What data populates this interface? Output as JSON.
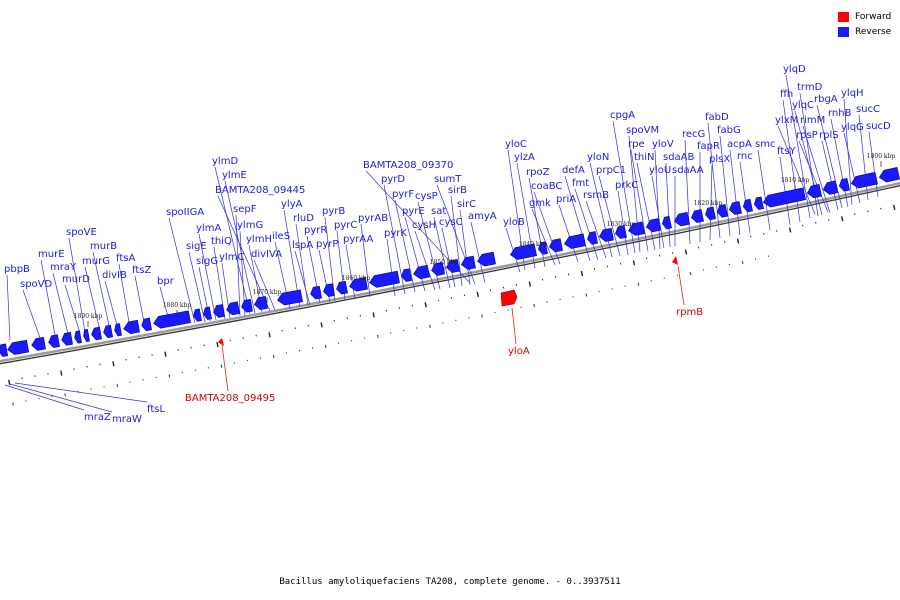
{
  "legend": {
    "forward": {
      "label": "Forward",
      "color": "#ff0000"
    },
    "reverse": {
      "label": "Reverse",
      "color": "#1a1aff"
    }
  },
  "caption": "Bacillus amyloliquefaciens TA208, complete genome. - 0..3937511",
  "scale_labels": [
    "1800 kbp",
    "1810 kbp",
    "1820 kbp",
    "1830 kbp",
    "1840 kbp",
    "1850 kbp",
    "1860 kbp",
    "1870 kbp",
    "1880 kbp",
    "1890 kbp"
  ],
  "reverse_genes": [
    "pbpB",
    "spoVD",
    "murE",
    "mraY",
    "murD",
    "spoVE",
    "murG",
    "murB",
    "divIB",
    "ftsA",
    "ftsZ",
    "bpr",
    "spoIIGA",
    "sigE",
    "sigG",
    "ylmA",
    "thiQ",
    "ylmC",
    "sepF",
    "ylmG",
    "ylmD",
    "ylmE",
    "BAMTA208_09445",
    "ylmH",
    "divIVA",
    "ileS",
    "ylyA",
    "rluD",
    "lspA",
    "pyrR",
    "pyrP",
    "pyrB",
    "pyrC",
    "pyrAA",
    "pyrAB",
    "pyrK",
    "pyrD",
    "pyrF",
    "pyrE",
    "cysH",
    "cysP",
    "sat",
    "cysC",
    "sirB",
    "sirC",
    "sumT",
    "BAMTA208_09370",
    "amyA",
    "yloB",
    "yloC",
    "ylzA",
    "rpoZ",
    "gmk",
    "coaBC",
    "priA",
    "defA",
    "fmt",
    "rsmB",
    "yloN",
    "prpC1",
    "prkC",
    "cpgA",
    "spoVM",
    "rpe",
    "thiN",
    "yloV",
    "yloU",
    "sdaAB",
    "sdaAA",
    "recG",
    "fapR",
    "plsX",
    "fabD",
    "fabG",
    "acpA",
    "rnc",
    "smc",
    "ftsY",
    "ffh",
    "ylqD",
    "trmD",
    "ylqC",
    "ylxM",
    "rimM",
    "rpsP",
    "rplS",
    "rbgA",
    "rnhB",
    "ylqH",
    "ylqG",
    "sucC",
    "sucD",
    "mraZ",
    "mraW",
    "ftsL"
  ],
  "forward_genes": [
    "BAMTA208_09495",
    "yloA",
    "rpmB"
  ]
}
